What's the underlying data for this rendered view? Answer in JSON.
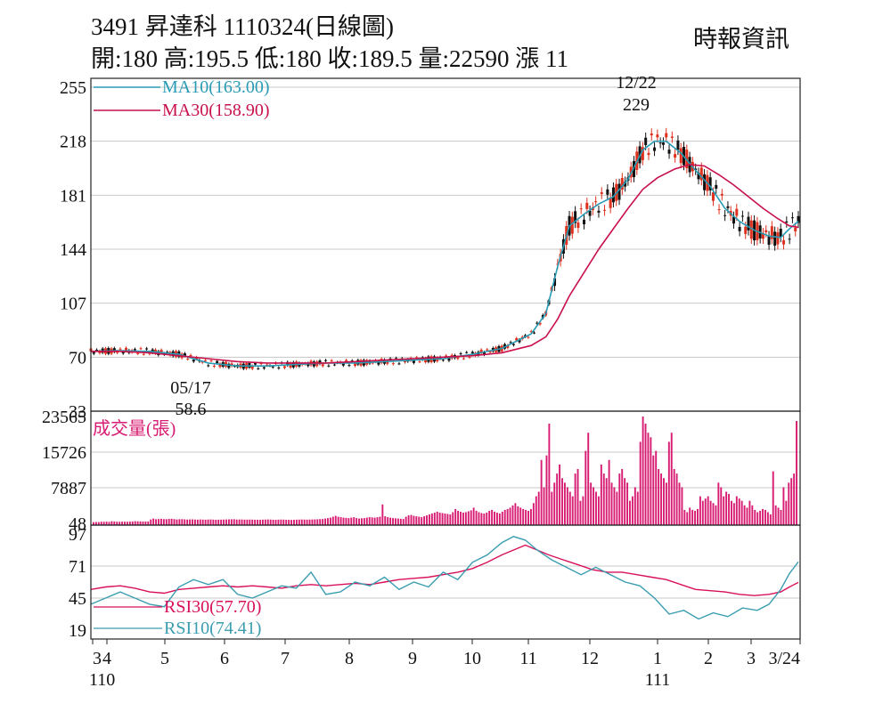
{
  "header": {
    "title": "3491  昇達科 1110324(日線圖)",
    "quote": "開:180 高:195.5 低:180 收:189.5 量:22590 漲 11",
    "source": "時報資訊"
  },
  "colors": {
    "ma10": "#2a9bb5",
    "ma30": "#c8104b",
    "up_candle": "#e0301e",
    "down_candle": "#111111",
    "volume_bar": "#d81b72",
    "rsi30": "#d8105a",
    "rsi10": "#3a9db0",
    "grid": "#c8c8c8"
  },
  "chart_data": [
    {
      "type": "candlestick",
      "panel": "price",
      "yticks": [
        255,
        218,
        181,
        144,
        107,
        70,
        33
      ],
      "ylim": [
        33,
        255
      ],
      "legend": [
        {
          "name": "MA10(163.00)",
          "color_key": "ma10"
        },
        {
          "name": "MA30(158.90)",
          "color_key": "ma30"
        }
      ],
      "annotations": [
        {
          "date": "12/22",
          "label": "12/22",
          "value": "229"
        },
        {
          "date": "05/17",
          "label": "05/17",
          "value": "58.6"
        }
      ],
      "series": [
        {
          "name": "MA10",
          "points": [
            [
              0,
              74
            ],
            [
              20,
              74.5
            ],
            [
              40,
              74
            ],
            [
              60,
              72
            ],
            [
              80,
              66
            ],
            [
              100,
              64
            ],
            [
              120,
              64
            ],
            [
              140,
              65
            ],
            [
              160,
              66
            ],
            [
              180,
              66
            ],
            [
              200,
              67
            ],
            [
              220,
              68
            ],
            [
              240,
              69
            ],
            [
              260,
              72
            ],
            [
              280,
              76
            ],
            [
              300,
              86
            ],
            [
              310,
              100
            ],
            [
              318,
              132
            ],
            [
              326,
              160
            ],
            [
              336,
              168
            ],
            [
              346,
              175
            ],
            [
              356,
              180
            ],
            [
              366,
              192
            ],
            [
              376,
              212
            ],
            [
              384,
              218
            ],
            [
              392,
              218
            ],
            [
              402,
              210
            ],
            [
              412,
              198
            ],
            [
              422,
              187
            ],
            [
              432,
              172
            ],
            [
              442,
              163
            ],
            [
              452,
              157
            ],
            [
              462,
              153
            ],
            [
              470,
              152
            ],
            [
              476,
              158
            ],
            [
              482,
              163
            ]
          ]
        },
        {
          "name": "MA30",
          "points": [
            [
              0,
              74
            ],
            [
              20,
              74
            ],
            [
              40,
              73
            ],
            [
              60,
              71
            ],
            [
              80,
              69
            ],
            [
              100,
              67
            ],
            [
              120,
              66
            ],
            [
              140,
              66
            ],
            [
              160,
              66
            ],
            [
              180,
              67
            ],
            [
              200,
              68
            ],
            [
              220,
              69
            ],
            [
              240,
              70
            ],
            [
              260,
              71
            ],
            [
              280,
              73
            ],
            [
              300,
              78
            ],
            [
              310,
              84
            ],
            [
              318,
              96
            ],
            [
              326,
              112
            ],
            [
              336,
              128
            ],
            [
              346,
              144
            ],
            [
              356,
              158
            ],
            [
              366,
              172
            ],
            [
              376,
              185
            ],
            [
              386,
              193
            ],
            [
              398,
              199
            ],
            [
              408,
              202
            ],
            [
              418,
              201
            ],
            [
              428,
              195
            ],
            [
              438,
              188
            ],
            [
              448,
              180
            ],
            [
              458,
              172
            ],
            [
              468,
              165
            ],
            [
              476,
              160
            ],
            [
              482,
              159
            ]
          ]
        }
      ]
    },
    {
      "type": "bar",
      "panel": "volume",
      "title": "成交量(張)",
      "yticks": [
        23565,
        15726,
        7887,
        48
      ],
      "ylim": [
        48,
        23565
      ],
      "values": [
        300,
        350,
        320,
        400,
        380,
        420,
        360,
        500,
        450,
        400,
        380,
        420,
        410,
        390,
        430,
        460,
        520,
        480,
        470,
        440,
        430,
        460,
        900,
        1100,
        950,
        1000,
        1050,
        980,
        960,
        1020,
        1050,
        980,
        900,
        950,
        970,
        930,
        880,
        900,
        920,
        880,
        860,
        900,
        870,
        850,
        880,
        900,
        870,
        820,
        850,
        860,
        880,
        900,
        920,
        940,
        960,
        880,
        890,
        900,
        860,
        870,
        880,
        860,
        850,
        840,
        820,
        860,
        880,
        900,
        880,
        840,
        820,
        860,
        880,
        870,
        840,
        820,
        800,
        830,
        850,
        870,
        900,
        880,
        860,
        880,
        900,
        920,
        940,
        980,
        1000,
        1100,
        1200,
        1300,
        1500,
        1700,
        1500,
        1400,
        1300,
        1250,
        1200,
        1300,
        1400,
        1200,
        1100,
        1150,
        1200,
        1300,
        1400,
        1350,
        1300,
        1400,
        1500,
        4200,
        1600,
        1400,
        1300,
        1200,
        1150,
        1100,
        1050,
        1000,
        1500,
        1800,
        1900,
        1700,
        1600,
        1500,
        1400,
        1600,
        1800,
        2000,
        2200,
        2400,
        2600,
        2400,
        2300,
        2200,
        2100,
        2000,
        2500,
        3200,
        2800,
        2600,
        2400,
        2500,
        2700,
        2900,
        3500,
        2800,
        2500,
        2300,
        2200,
        2400,
        2800,
        3000,
        2600,
        2400,
        2200,
        2600,
        3000,
        3200,
        3500,
        4000,
        4500,
        3800,
        3500,
        3200,
        3000,
        2800,
        3200,
        4500,
        6000,
        7000,
        14000,
        8000,
        15000,
        22000,
        7000,
        9000,
        11000,
        13000,
        10000,
        9000,
        8000,
        7000,
        6000,
        11000,
        12000,
        5000,
        6000,
        16000,
        20000,
        9000,
        8000,
        7000,
        6000,
        13000,
        11000,
        10000,
        14000,
        9000,
        8000,
        7000,
        11000,
        12000,
        10000,
        9000,
        5000,
        6000,
        8000,
        7000,
        18000,
        23565,
        22000,
        20000,
        19000,
        15000,
        16000,
        12000,
        11000,
        10000,
        9000,
        18000,
        20000,
        12000,
        11000,
        9000,
        8000,
        3000,
        2500,
        3500,
        3000,
        2800,
        3200,
        6000,
        5000,
        5500,
        6000,
        5000,
        4500,
        4000,
        9000,
        8000,
        6000,
        7000,
        6500,
        5000,
        4500,
        6000,
        5500,
        5000,
        4000,
        3500,
        5000,
        4000,
        3000,
        2500,
        2800,
        3200,
        3000,
        2500,
        2000,
        11500,
        4000,
        3500,
        3000,
        8000,
        5000,
        9000,
        10000,
        11000,
        22590
      ]
    },
    {
      "type": "line",
      "panel": "rsi",
      "yticks": [
        97,
        71,
        45,
        19
      ],
      "ylim": [
        19,
        97
      ],
      "series": [
        {
          "name": "RSI30(57.70)",
          "color_key": "rsi30",
          "points": [
            [
              0,
              52
            ],
            [
              10,
              54
            ],
            [
              20,
              55
            ],
            [
              30,
              53
            ],
            [
              40,
              50
            ],
            [
              50,
              49
            ],
            [
              60,
              52
            ],
            [
              70,
              53
            ],
            [
              80,
              54
            ],
            [
              90,
              55
            ],
            [
              100,
              54
            ],
            [
              110,
              55
            ],
            [
              120,
              54
            ],
            [
              130,
              53
            ],
            [
              140,
              55
            ],
            [
              150,
              56
            ],
            [
              160,
              55
            ],
            [
              170,
              56
            ],
            [
              180,
              57
            ],
            [
              190,
              56
            ],
            [
              200,
              58
            ],
            [
              210,
              60
            ],
            [
              220,
              61
            ],
            [
              230,
              62
            ],
            [
              240,
              64
            ],
            [
              250,
              66
            ],
            [
              260,
              69
            ],
            [
              270,
              74
            ],
            [
              280,
              80
            ],
            [
              290,
              85
            ],
            [
              296,
              88
            ],
            [
              302,
              85
            ],
            [
              312,
              80
            ],
            [
              322,
              76
            ],
            [
              332,
              72
            ],
            [
              342,
              68
            ],
            [
              352,
              66
            ],
            [
              362,
              66
            ],
            [
              372,
              64
            ],
            [
              382,
              62
            ],
            [
              392,
              60
            ],
            [
              402,
              56
            ],
            [
              412,
              52
            ],
            [
              422,
              51
            ],
            [
              432,
              50
            ],
            [
              442,
              48
            ],
            [
              452,
              47
            ],
            [
              462,
              48
            ],
            [
              470,
              50
            ],
            [
              476,
              54
            ],
            [
              482,
              57.7
            ]
          ]
        },
        {
          "name": "RSI10(74.41)",
          "color_key": "rsi10",
          "points": [
            [
              0,
              40
            ],
            [
              10,
              45
            ],
            [
              20,
              50
            ],
            [
              30,
              45
            ],
            [
              40,
              40
            ],
            [
              50,
              38
            ],
            [
              60,
              54
            ],
            [
              70,
              60
            ],
            [
              80,
              56
            ],
            [
              90,
              60
            ],
            [
              100,
              48
            ],
            [
              110,
              45
            ],
            [
              120,
              50
            ],
            [
              130,
              55
            ],
            [
              140,
              53
            ],
            [
              150,
              66
            ],
            [
              160,
              48
            ],
            [
              170,
              50
            ],
            [
              180,
              58
            ],
            [
              190,
              55
            ],
            [
              200,
              62
            ],
            [
              210,
              52
            ],
            [
              220,
              58
            ],
            [
              230,
              54
            ],
            [
              240,
              66
            ],
            [
              250,
              60
            ],
            [
              260,
              74
            ],
            [
              270,
              80
            ],
            [
              280,
              90
            ],
            [
              288,
              95
            ],
            [
              296,
              92
            ],
            [
              304,
              84
            ],
            [
              314,
              76
            ],
            [
              324,
              70
            ],
            [
              334,
              64
            ],
            [
              344,
              70
            ],
            [
              354,
              64
            ],
            [
              364,
              58
            ],
            [
              374,
              55
            ],
            [
              384,
              45
            ],
            [
              394,
              32
            ],
            [
              404,
              35
            ],
            [
              414,
              28
            ],
            [
              424,
              33
            ],
            [
              434,
              30
            ],
            [
              444,
              37
            ],
            [
              454,
              35
            ],
            [
              462,
              40
            ],
            [
              470,
              52
            ],
            [
              476,
              65
            ],
            [
              482,
              74.41
            ]
          ]
        }
      ]
    }
  ],
  "xaxis": {
    "labels": [
      "3",
      "4",
      "5",
      "6",
      "7",
      "8",
      "9",
      "10",
      "11",
      "12",
      "1",
      "2",
      "3",
      "3/24"
    ],
    "year_labels": [
      "110",
      "111"
    ]
  }
}
